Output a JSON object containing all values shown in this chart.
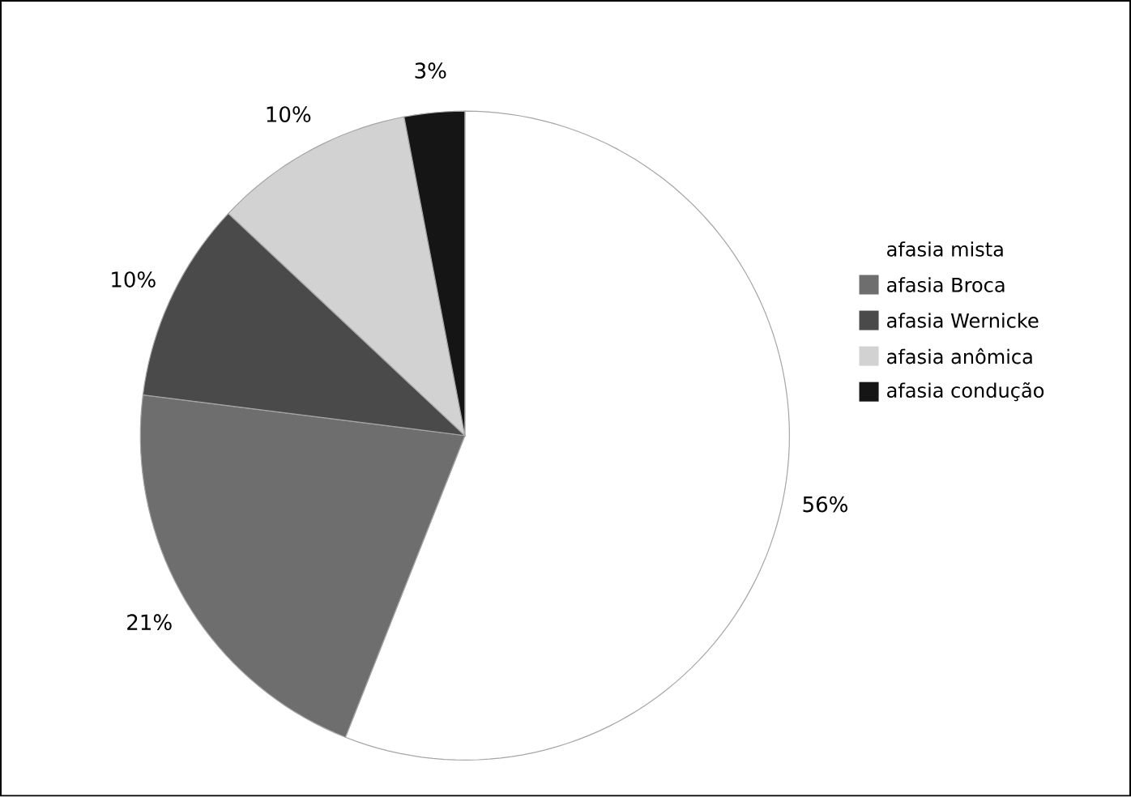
{
  "chart_data": {
    "type": "pie",
    "categories": [
      "afasia mista",
      "afasia Broca",
      "afasia Wernicke",
      "afasia anômica",
      "afasia condução"
    ],
    "values": [
      56,
      21,
      10,
      10,
      3
    ],
    "value_labels": [
      "56%",
      "21%",
      "10%",
      "10%",
      "3%"
    ],
    "colors": [
      "#ffffff",
      "#6e6e6e",
      "#4a4a4a",
      "#d2d2d2",
      "#151515"
    ],
    "legend": "right"
  }
}
